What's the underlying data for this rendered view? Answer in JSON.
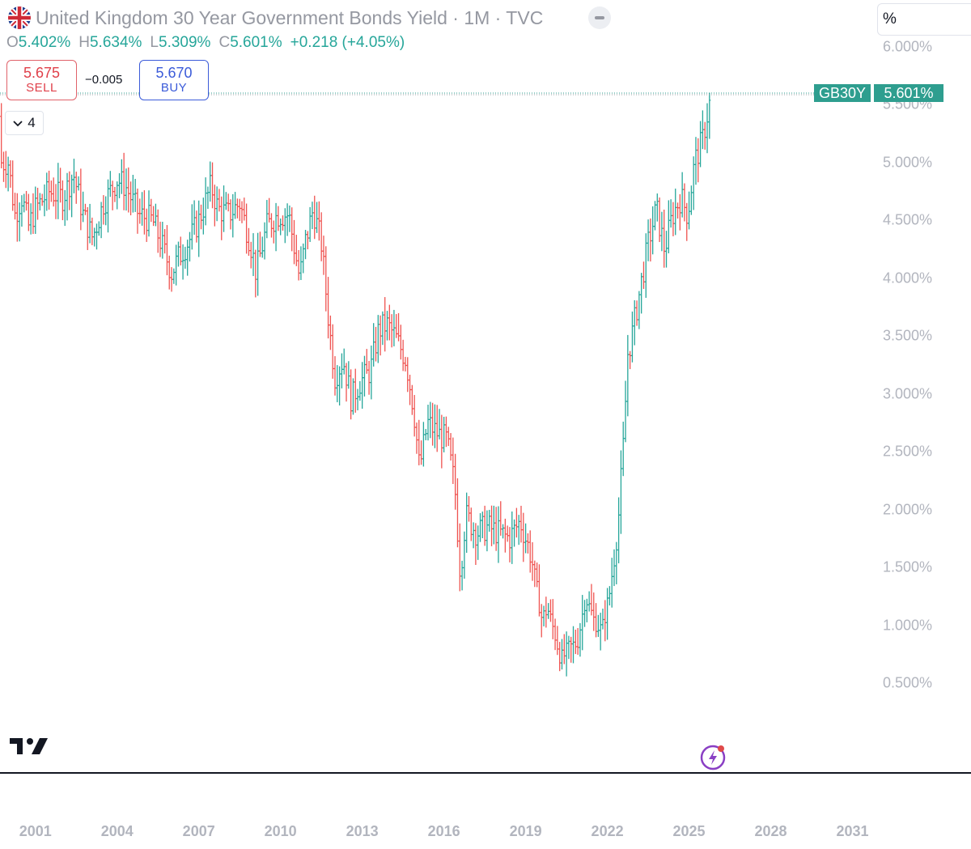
{
  "header": {
    "title": "United Kingdom 30 Year Government Bonds Yield · 1M · TVC",
    "ohlc": {
      "open_key": "O",
      "open": "5.402%",
      "high_key": "H",
      "high": "5.634%",
      "low_key": "L",
      "low": "5.309%",
      "close_key": "C",
      "close": "5.601%",
      "change": "+0.218 (+4.05%)"
    }
  },
  "trade": {
    "sell_price": "5.675",
    "sell_label": "SELL",
    "spread": "−0.005",
    "buy_price": "5.670",
    "buy_label": "BUY"
  },
  "indicator_count": "4",
  "unit_label": "%",
  "price_tag": {
    "symbol": "GB30Y",
    "value": "5.601%"
  },
  "colors": {
    "up": "#26a69a",
    "down": "#ef5350",
    "tag": "#2e9e8f",
    "axis_text": "#b2b5be"
  },
  "chart_data": {
    "type": "ohlc",
    "interval": "1M",
    "y_unit": "%",
    "ylim": [
      0.2,
      6.1
    ],
    "y_ticks": [
      "0.500%",
      "1.000%",
      "1.500%",
      "2.000%",
      "2.500%",
      "3.000%",
      "3.500%",
      "4.000%",
      "4.500%",
      "5.000%",
      "5.500%",
      "6.000%"
    ],
    "x_ticks": [
      "2001",
      "2004",
      "2007",
      "2010",
      "2013",
      "2016",
      "2019",
      "2022",
      "2025",
      "2028",
      "2031"
    ],
    "x_range": [
      1999.7,
      2032.5
    ],
    "last_value": 5.601,
    "monthly_close_anchors": [
      [
        2000.0,
        5.0
      ],
      [
        2000.25,
        4.55
      ],
      [
        2000.5,
        4.7
      ],
      [
        2000.75,
        4.45
      ],
      [
        2001.0,
        4.6
      ],
      [
        2001.5,
        4.75
      ],
      [
        2002.0,
        4.7
      ],
      [
        2002.4,
        4.9
      ],
      [
        2002.75,
        4.55
      ],
      [
        2003.1,
        4.35
      ],
      [
        2003.5,
        4.65
      ],
      [
        2004.0,
        4.85
      ],
      [
        2004.3,
        4.8
      ],
      [
        2004.8,
        4.55
      ],
      [
        2005.3,
        4.5
      ],
      [
        2005.7,
        4.25
      ],
      [
        2006.0,
        4.05
      ],
      [
        2006.3,
        4.2
      ],
      [
        2006.7,
        4.35
      ],
      [
        2007.0,
        4.5
      ],
      [
        2007.45,
        4.8
      ],
      [
        2007.7,
        4.6
      ],
      [
        2008.1,
        4.55
      ],
      [
        2008.5,
        4.65
      ],
      [
        2008.9,
        4.3
      ],
      [
        2009.1,
        4.05
      ],
      [
        2009.5,
        4.45
      ],
      [
        2009.9,
        4.55
      ],
      [
        2010.3,
        4.55
      ],
      [
        2010.7,
        4.0
      ],
      [
        2010.9,
        4.3
      ],
      [
        2011.2,
        4.6
      ],
      [
        2011.5,
        4.3
      ],
      [
        2011.8,
        3.55
      ],
      [
        2012.0,
        3.15
      ],
      [
        2012.3,
        3.3
      ],
      [
        2012.6,
        2.95
      ],
      [
        2012.9,
        3.1
      ],
      [
        2013.3,
        3.2
      ],
      [
        2013.6,
        3.55
      ],
      [
        2013.9,
        3.6
      ],
      [
        2014.2,
        3.5
      ],
      [
        2014.6,
        3.3
      ],
      [
        2014.9,
        2.85
      ],
      [
        2015.1,
        2.35
      ],
      [
        2015.4,
        2.75
      ],
      [
        2015.8,
        2.65
      ],
      [
        2016.1,
        2.6
      ],
      [
        2016.4,
        2.2
      ],
      [
        2016.6,
        1.45
      ],
      [
        2016.8,
        1.95
      ],
      [
        2017.2,
        1.8
      ],
      [
        2017.6,
        1.85
      ],
      [
        2018.0,
        1.8
      ],
      [
        2018.4,
        1.75
      ],
      [
        2018.8,
        1.9
      ],
      [
        2019.2,
        1.6
      ],
      [
        2019.6,
        1.05
      ],
      [
        2019.8,
        1.15
      ],
      [
        2020.1,
        0.9
      ],
      [
        2020.3,
        0.7
      ],
      [
        2020.6,
        0.8
      ],
      [
        2020.9,
        0.85
      ],
      [
        2021.2,
        1.25
      ],
      [
        2021.5,
        1.05
      ],
      [
        2021.8,
        0.95
      ],
      [
        2022.1,
        1.3
      ],
      [
        2022.4,
        1.9
      ],
      [
        2022.6,
        2.6
      ],
      [
        2022.75,
        3.35
      ],
      [
        2022.9,
        3.5
      ],
      [
        2023.2,
        3.9
      ],
      [
        2023.5,
        4.3
      ],
      [
        2023.8,
        4.6
      ],
      [
        2024.1,
        4.25
      ],
      [
        2024.4,
        4.55
      ],
      [
        2024.7,
        4.7
      ],
      [
        2024.95,
        4.55
      ],
      [
        2025.2,
        5.0
      ],
      [
        2025.5,
        5.2
      ],
      [
        2025.7,
        5.45
      ],
      [
        2025.83,
        5.601
      ]
    ]
  }
}
